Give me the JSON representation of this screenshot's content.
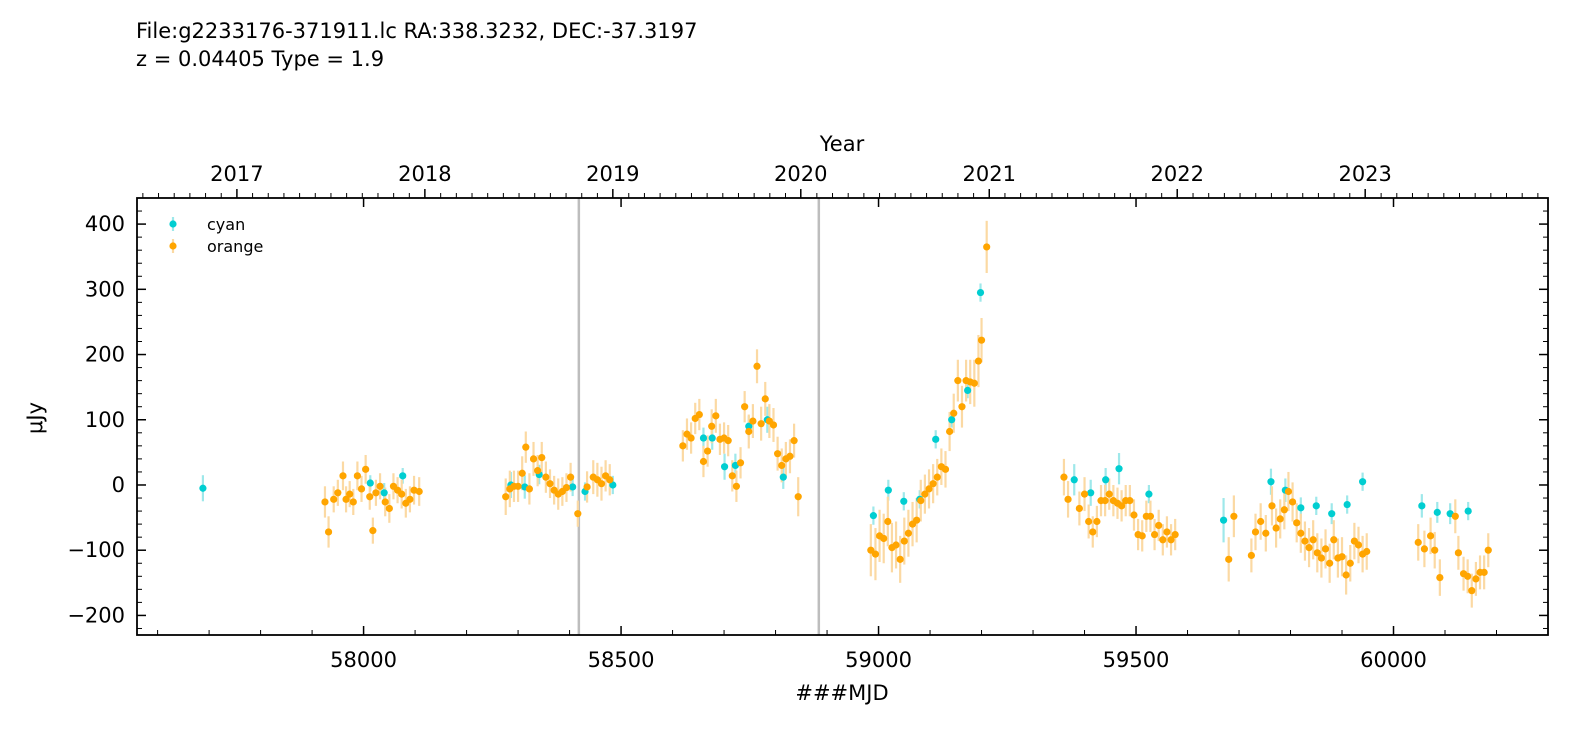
{
  "header": {
    "line1": "File:g2233176-371911.lc  RA:338.3232, DEC:-37.3197",
    "line2": "z = 0.04405  Type = 1.9"
  },
  "chart_data": {
    "type": "scatter",
    "title": "File:g2233176-371911.lc  RA:338.3232, DEC:-37.3197 / z = 0.04405  Type = 1.9",
    "xlabel": "###MJD",
    "ylabel": "μJy",
    "top_xlabel": "Year",
    "xlim": [
      57560,
      60300
    ],
    "ylim": [
      -230,
      440
    ],
    "x_ticks": [
      58000,
      58500,
      59000,
      59500,
      60000
    ],
    "y_ticks": [
      -200,
      -100,
      0,
      100,
      200,
      300,
      400
    ],
    "year_ticks": [
      {
        "label": "2017",
        "mjd": 57754
      },
      {
        "label": "2018",
        "mjd": 58119
      },
      {
        "label": "2019",
        "mjd": 58484
      },
      {
        "label": "2020",
        "mjd": 58849
      },
      {
        "label": "2021",
        "mjd": 59215
      },
      {
        "label": "2022",
        "mjd": 59580
      },
      {
        "label": "2023",
        "mjd": 59945
      }
    ],
    "vertical_lines": [
      58418,
      58884
    ],
    "legend_position": "top-left",
    "grid": false,
    "series": [
      {
        "name": "cyan",
        "color": "#00CED1",
        "err_color": "#9EE8EA",
        "points": [
          [
            57688,
            -5,
            20
          ],
          [
            58013,
            3,
            12
          ],
          [
            58040,
            -12,
            15
          ],
          [
            58076,
            14,
            12
          ],
          [
            58286,
            0,
            20
          ],
          [
            58313,
            -3,
            18
          ],
          [
            58341,
            16,
            15
          ],
          [
            58406,
            -3,
            14
          ],
          [
            58430,
            -10,
            14
          ],
          [
            58484,
            0,
            14
          ],
          [
            58660,
            72,
            16
          ],
          [
            58677,
            72,
            18
          ],
          [
            58701,
            28,
            20
          ],
          [
            58722,
            30,
            18
          ],
          [
            58748,
            90,
            16
          ],
          [
            58784,
            100,
            20
          ],
          [
            58815,
            12,
            18
          ],
          [
            58990,
            -47,
            14
          ],
          [
            59019,
            -8,
            16
          ],
          [
            59049,
            -25,
            14
          ],
          [
            59080,
            -22,
            14
          ],
          [
            59111,
            70,
            14
          ],
          [
            59142,
            100,
            12
          ],
          [
            59173,
            145,
            12
          ],
          [
            59198,
            295,
            14
          ],
          [
            59380,
            8,
            24
          ],
          [
            59412,
            -12,
            20
          ],
          [
            59441,
            8,
            18
          ],
          [
            59467,
            25,
            24
          ],
          [
            59525,
            -14,
            14
          ],
          [
            59670,
            -54,
            34
          ],
          [
            59762,
            5,
            20
          ],
          [
            59790,
            -8,
            18
          ],
          [
            59820,
            -35,
            16
          ],
          [
            59850,
            -32,
            14
          ],
          [
            59880,
            -44,
            16
          ],
          [
            59910,
            -30,
            14
          ],
          [
            59940,
            5,
            14
          ],
          [
            60055,
            -32,
            18
          ],
          [
            60085,
            -42,
            16
          ],
          [
            60110,
            -44,
            16
          ],
          [
            60145,
            -40,
            14
          ]
        ]
      },
      {
        "name": "orange",
        "color": "#FFA500",
        "err_color": "#FBD9A3",
        "points": [
          [
            57925,
            -26,
            24
          ],
          [
            57932,
            -72,
            24
          ],
          [
            57942,
            -22,
            20
          ],
          [
            57950,
            -12,
            20
          ],
          [
            57960,
            14,
            22
          ],
          [
            57966,
            -22,
            20
          ],
          [
            57973,
            -14,
            20
          ],
          [
            57980,
            -26,
            20
          ],
          [
            57988,
            14,
            22
          ],
          [
            57996,
            -6,
            20
          ],
          [
            58004,
            24,
            22
          ],
          [
            58012,
            -18,
            20
          ],
          [
            58018,
            -70,
            20
          ],
          [
            58024,
            -12,
            20
          ],
          [
            58032,
            -2,
            20
          ],
          [
            58042,
            -26,
            22
          ],
          [
            58050,
            -36,
            22
          ],
          [
            58058,
            -2,
            20
          ],
          [
            58066,
            -8,
            20
          ],
          [
            58074,
            -14,
            22
          ],
          [
            58082,
            -28,
            22
          ],
          [
            58090,
            -22,
            20
          ],
          [
            58098,
            -8,
            22
          ],
          [
            58108,
            -10,
            22
          ],
          [
            58276,
            -18,
            28
          ],
          [
            58284,
            -6,
            28
          ],
          [
            58292,
            -2,
            24
          ],
          [
            58300,
            -2,
            24
          ],
          [
            58308,
            18,
            26
          ],
          [
            58315,
            58,
            24
          ],
          [
            58322,
            -6,
            24
          ],
          [
            58330,
            40,
            26
          ],
          [
            58338,
            22,
            24
          ],
          [
            58346,
            42,
            24
          ],
          [
            58354,
            12,
            24
          ],
          [
            58362,
            2,
            22
          ],
          [
            58370,
            -8,
            22
          ],
          [
            58378,
            -14,
            24
          ],
          [
            58386,
            -10,
            22
          ],
          [
            58394,
            -4,
            22
          ],
          [
            58402,
            12,
            22
          ],
          [
            58416,
            -44,
            20
          ],
          [
            58434,
            -3,
            24
          ],
          [
            58446,
            12,
            26
          ],
          [
            58454,
            8,
            26
          ],
          [
            58462,
            2,
            26
          ],
          [
            58470,
            14,
            24
          ],
          [
            58478,
            8,
            24
          ],
          [
            58620,
            60,
            24
          ],
          [
            58628,
            78,
            24
          ],
          [
            58636,
            72,
            24
          ],
          [
            58644,
            102,
            24
          ],
          [
            58652,
            108,
            24
          ],
          [
            58660,
            36,
            24
          ],
          [
            58668,
            52,
            24
          ],
          [
            58676,
            90,
            26
          ],
          [
            58684,
            106,
            26
          ],
          [
            58692,
            70,
            24
          ],
          [
            58700,
            72,
            24
          ],
          [
            58708,
            68,
            24
          ],
          [
            58716,
            14,
            24
          ],
          [
            58724,
            -2,
            24
          ],
          [
            58732,
            34,
            24
          ],
          [
            58740,
            120,
            24
          ],
          [
            58748,
            82,
            26
          ],
          [
            58756,
            98,
            26
          ],
          [
            58764,
            182,
            26
          ],
          [
            58772,
            94,
            26
          ],
          [
            58780,
            132,
            26
          ],
          [
            58788,
            98,
            26
          ],
          [
            58796,
            92,
            26
          ],
          [
            58804,
            48,
            26
          ],
          [
            58812,
            30,
            26
          ],
          [
            58820,
            40,
            26
          ],
          [
            58828,
            44,
            26
          ],
          [
            58836,
            68,
            26
          ],
          [
            58844,
            -18,
            30
          ],
          [
            58985,
            -100,
            40
          ],
          [
            58994,
            -106,
            40
          ],
          [
            59002,
            -78,
            40
          ],
          [
            59010,
            -82,
            38
          ],
          [
            59018,
            -56,
            38
          ],
          [
            59026,
            -96,
            38
          ],
          [
            59034,
            -92,
            36
          ],
          [
            59042,
            -114,
            36
          ],
          [
            59050,
            -86,
            36
          ],
          [
            59058,
            -74,
            36
          ],
          [
            59066,
            -60,
            34
          ],
          [
            59074,
            -54,
            34
          ],
          [
            59082,
            -24,
            32
          ],
          [
            59090,
            -14,
            30
          ],
          [
            59098,
            -6,
            30
          ],
          [
            59106,
            2,
            30
          ],
          [
            59114,
            12,
            28
          ],
          [
            59122,
            28,
            28
          ],
          [
            59130,
            24,
            28
          ],
          [
            59138,
            82,
            30
          ],
          [
            59146,
            110,
            30
          ],
          [
            59154,
            160,
            32
          ],
          [
            59162,
            120,
            32
          ],
          [
            59170,
            160,
            32
          ],
          [
            59178,
            158,
            34
          ],
          [
            59186,
            156,
            36
          ],
          [
            59194,
            190,
            40
          ],
          [
            59200,
            222,
            34
          ],
          [
            59210,
            365,
            40
          ],
          [
            59360,
            12,
            28
          ],
          [
            59368,
            -22,
            28
          ],
          [
            59390,
            -36,
            26
          ],
          [
            59400,
            -14,
            26
          ],
          [
            59408,
            -56,
            26
          ],
          [
            59416,
            -72,
            24
          ],
          [
            59424,
            -56,
            24
          ],
          [
            59432,
            -24,
            24
          ],
          [
            59440,
            -24,
            24
          ],
          [
            59448,
            -14,
            24
          ],
          [
            59456,
            -24,
            24
          ],
          [
            59464,
            -28,
            24
          ],
          [
            59472,
            -32,
            24
          ],
          [
            59480,
            -24,
            24
          ],
          [
            59488,
            -24,
            24
          ],
          [
            59496,
            -46,
            24
          ],
          [
            59504,
            -76,
            24
          ],
          [
            59512,
            -78,
            24
          ],
          [
            59520,
            -48,
            24
          ],
          [
            59528,
            -48,
            24
          ],
          [
            59536,
            -76,
            24
          ],
          [
            59544,
            -62,
            24
          ],
          [
            59552,
            -84,
            24
          ],
          [
            59560,
            -72,
            24
          ],
          [
            59568,
            -84,
            24
          ],
          [
            59576,
            -76,
            24
          ],
          [
            59680,
            -114,
            34
          ],
          [
            59690,
            -48,
            32
          ],
          [
            59724,
            -108,
            26
          ],
          [
            59732,
            -72,
            28
          ],
          [
            59742,
            -56,
            28
          ],
          [
            59752,
            -74,
            28
          ],
          [
            59764,
            -32,
            30
          ],
          [
            59772,
            -66,
            30
          ],
          [
            59780,
            -52,
            30
          ],
          [
            59788,
            -38,
            30
          ],
          [
            59796,
            -10,
            30
          ],
          [
            59804,
            -26,
            30
          ],
          [
            59812,
            -58,
            30
          ],
          [
            59820,
            -74,
            30
          ],
          [
            59828,
            -86,
            30
          ],
          [
            59836,
            -96,
            30
          ],
          [
            59844,
            -84,
            30
          ],
          [
            59852,
            -104,
            30
          ],
          [
            59860,
            -112,
            30
          ],
          [
            59868,
            -98,
            30
          ],
          [
            59876,
            -120,
            30
          ],
          [
            59884,
            -84,
            30
          ],
          [
            59892,
            -112,
            30
          ],
          [
            59900,
            -110,
            30
          ],
          [
            59908,
            -138,
            30
          ],
          [
            59916,
            -120,
            28
          ],
          [
            59924,
            -86,
            28
          ],
          [
            59932,
            -92,
            28
          ],
          [
            59940,
            -106,
            28
          ],
          [
            59948,
            -102,
            28
          ],
          [
            60048,
            -88,
            28
          ],
          [
            60060,
            -98,
            28
          ],
          [
            60072,
            -78,
            28
          ],
          [
            60080,
            -100,
            28
          ],
          [
            60090,
            -142,
            28
          ],
          [
            60120,
            -48,
            26
          ],
          [
            60126,
            -104,
            26
          ],
          [
            60136,
            -136,
            26
          ],
          [
            60144,
            -140,
            26
          ],
          [
            60152,
            -162,
            26
          ],
          [
            60160,
            -144,
            26
          ],
          [
            60168,
            -134,
            26
          ],
          [
            60176,
            -134,
            26
          ],
          [
            60184,
            -100,
            26
          ]
        ]
      }
    ]
  }
}
